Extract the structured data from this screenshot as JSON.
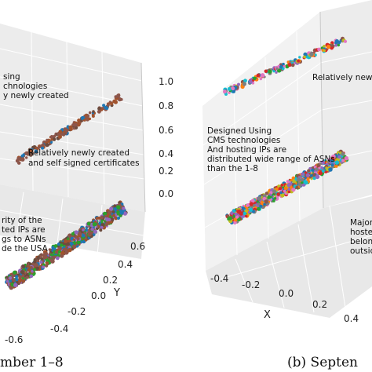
{
  "chart_data": [
    {
      "type": "scatter",
      "ylabel": "Y",
      "z_ticks": [
        "1.0",
        "0.8",
        "0.6",
        "0.4",
        "0.2",
        "0.0"
      ],
      "y_ticks": [
        "0.6",
        "0.4",
        "0.2",
        "0.0",
        "-0.2",
        "-0.4",
        "-0.6"
      ],
      "annotations": [
        [
          "sing",
          "chnologies",
          "y newly created"
        ],
        [
          "Relatively newly created",
          "and self signed certificates"
        ],
        [
          "rity of the",
          "ted IPs are",
          "gs to ASNs",
          "de the USA"
        ]
      ],
      "caption": "mber 1–8"
    },
    {
      "type": "scatter",
      "xlabel": "X",
      "x_ticks": [
        "-0.4",
        "-0.2",
        "0.0",
        "0.2",
        "0.4"
      ],
      "annotations": [
        [
          "Relatively newly c"
        ],
        [
          "Designed Using",
          "CMS technologies",
          "And hosting IPs are",
          "distributed wide range of ASNs",
          "than the 1-8"
        ],
        [
          "Majori",
          "hostec",
          "belong",
          "outsid"
        ]
      ],
      "caption": "(b) Septen"
    }
  ]
}
